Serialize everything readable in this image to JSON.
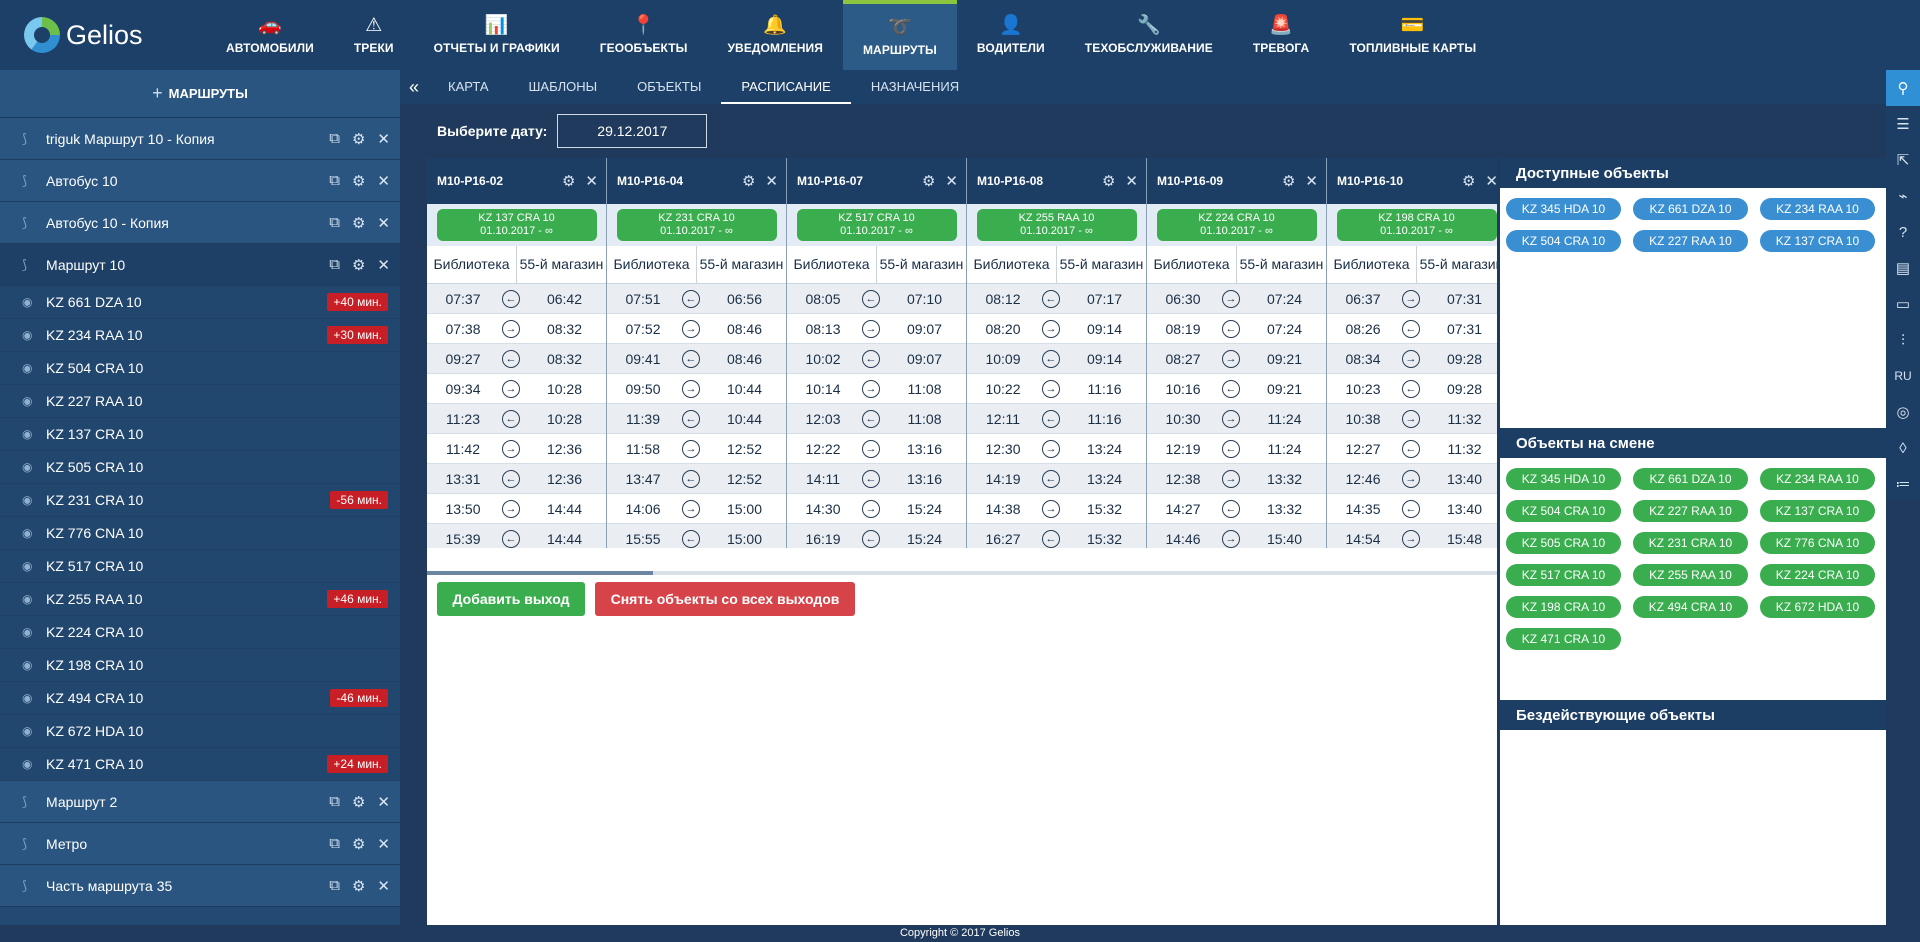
{
  "app": {
    "logo_text": "Gelios"
  },
  "nav": [
    {
      "label": "АВТОМОБИЛИ",
      "icon": "🚗",
      "active": false
    },
    {
      "label": "ТРЕКИ",
      "icon": "⚠",
      "active": false
    },
    {
      "label": "ОТЧЕТЫ И ГРАФИКИ",
      "icon": "📊",
      "active": false
    },
    {
      "label": "ГЕООБЪЕКТЫ",
      "icon": "📍",
      "active": false
    },
    {
      "label": "УВЕДОМЛЕНИЯ",
      "icon": "🔔",
      "active": false
    },
    {
      "label": "МАРШРУТЫ",
      "icon": "➰",
      "active": true
    },
    {
      "label": "ВОДИТЕЛИ",
      "icon": "👤",
      "active": false
    },
    {
      "label": "ТЕХОБСЛУЖИВАНИЕ",
      "icon": "🔧",
      "active": false
    },
    {
      "label": "ТРЕВОГА",
      "icon": "🚨",
      "active": false
    },
    {
      "label": "ТОПЛИВНЫЕ КАРТЫ",
      "icon": "💳",
      "active": false
    }
  ],
  "sidebar": {
    "add_label": "МАРШРУТЫ",
    "routes_before": [
      {
        "name": "triguk Маршрут 10 - Копия"
      },
      {
        "name": "Автобус 10"
      },
      {
        "name": "Автобус 10 - Копия"
      }
    ],
    "active_route": {
      "name": "Маршрут 10"
    },
    "objects": [
      {
        "name": "KZ 661 DZA 10",
        "deviation": "+40 мин."
      },
      {
        "name": "KZ 234 RAA 10",
        "deviation": "+30 мин."
      },
      {
        "name": "KZ 504 CRA 10",
        "deviation": ""
      },
      {
        "name": "KZ 227 RAA 10",
        "deviation": ""
      },
      {
        "name": "KZ 137 CRA 10",
        "deviation": ""
      },
      {
        "name": "KZ 505 CRA 10",
        "deviation": ""
      },
      {
        "name": "KZ 231 CRA 10",
        "deviation": "-56 мин."
      },
      {
        "name": "KZ 776 CNA 10",
        "deviation": ""
      },
      {
        "name": "KZ 517 CRA 10",
        "deviation": ""
      },
      {
        "name": "KZ 255 RAA 10",
        "deviation": "+46 мин."
      },
      {
        "name": "KZ 224 CRA 10",
        "deviation": ""
      },
      {
        "name": "KZ 198 CRA 10",
        "deviation": ""
      },
      {
        "name": "KZ 494 CRA 10",
        "deviation": "-46 мин."
      },
      {
        "name": "KZ 672 HDA 10",
        "deviation": ""
      },
      {
        "name": "KZ 471 CRA 10",
        "deviation": "+24 мин."
      }
    ],
    "routes_after": [
      {
        "name": "Маршрут 2"
      },
      {
        "name": "Метро"
      },
      {
        "name": "Часть маршрута 35"
      }
    ]
  },
  "subtabs": [
    {
      "label": "КАРТА",
      "active": false
    },
    {
      "label": "ШАБЛОНЫ",
      "active": false
    },
    {
      "label": "ОБЪЕКТЫ",
      "active": false
    },
    {
      "label": "РАСПИСАНИЕ",
      "active": true
    },
    {
      "label": "НАЗНАЧЕНИЯ",
      "active": false
    }
  ],
  "date": {
    "label": "Выберите дату:",
    "value": "29.12.2017"
  },
  "schedule": {
    "stop_a": "Библиотека",
    "stop_b": "55-й магазин",
    "columns": [
      {
        "title": "М10-Р16-02",
        "object": "KZ 137 CRA 10",
        "period": "01.10.2017 - ∞",
        "rows": [
          [
            "07:37",
            "←",
            "06:42"
          ],
          [
            "07:38",
            "→",
            "08:32"
          ],
          [
            "09:27",
            "←",
            "08:32"
          ],
          [
            "09:34",
            "→",
            "10:28"
          ],
          [
            "11:23",
            "←",
            "10:28"
          ],
          [
            "11:42",
            "→",
            "12:36"
          ],
          [
            "13:31",
            "←",
            "12:36"
          ],
          [
            "13:50",
            "→",
            "14:44"
          ],
          [
            "15:39",
            "←",
            "14:44"
          ]
        ]
      },
      {
        "title": "М10-Р16-04",
        "object": "KZ 231 CRA 10",
        "period": "01.10.2017 - ∞",
        "rows": [
          [
            "07:51",
            "←",
            "06:56"
          ],
          [
            "07:52",
            "→",
            "08:46"
          ],
          [
            "09:41",
            "←",
            "08:46"
          ],
          [
            "09:50",
            "→",
            "10:44"
          ],
          [
            "11:39",
            "←",
            "10:44"
          ],
          [
            "11:58",
            "→",
            "12:52"
          ],
          [
            "13:47",
            "←",
            "12:52"
          ],
          [
            "14:06",
            "→",
            "15:00"
          ],
          [
            "15:55",
            "←",
            "15:00"
          ]
        ]
      },
      {
        "title": "М10-Р16-07",
        "object": "KZ 517 CRA 10",
        "period": "01.10.2017 - ∞",
        "rows": [
          [
            "08:05",
            "←",
            "07:10"
          ],
          [
            "08:13",
            "→",
            "09:07"
          ],
          [
            "10:02",
            "←",
            "09:07"
          ],
          [
            "10:14",
            "→",
            "11:08"
          ],
          [
            "12:03",
            "←",
            "11:08"
          ],
          [
            "12:22",
            "→",
            "13:16"
          ],
          [
            "14:11",
            "←",
            "13:16"
          ],
          [
            "14:30",
            "→",
            "15:24"
          ],
          [
            "16:19",
            "←",
            "15:24"
          ]
        ]
      },
      {
        "title": "М10-Р16-08",
        "object": "KZ 255 RAA 10",
        "period": "01.10.2017 - ∞",
        "rows": [
          [
            "08:12",
            "←",
            "07:17"
          ],
          [
            "08:20",
            "→",
            "09:14"
          ],
          [
            "10:09",
            "←",
            "09:14"
          ],
          [
            "10:22",
            "→",
            "11:16"
          ],
          [
            "12:11",
            "←",
            "11:16"
          ],
          [
            "12:30",
            "→",
            "13:24"
          ],
          [
            "14:19",
            "←",
            "13:24"
          ],
          [
            "14:38",
            "→",
            "15:32"
          ],
          [
            "16:27",
            "←",
            "15:32"
          ]
        ]
      },
      {
        "title": "М10-Р16-09",
        "object": "KZ 224 CRA 10",
        "period": "01.10.2017 - ∞",
        "rows": [
          [
            "06:30",
            "→",
            "07:24"
          ],
          [
            "08:19",
            "←",
            "07:24"
          ],
          [
            "08:27",
            "→",
            "09:21"
          ],
          [
            "10:16",
            "←",
            "09:21"
          ],
          [
            "10:30",
            "→",
            "11:24"
          ],
          [
            "12:19",
            "←",
            "11:24"
          ],
          [
            "12:38",
            "→",
            "13:32"
          ],
          [
            "14:27",
            "←",
            "13:32"
          ],
          [
            "14:46",
            "→",
            "15:40"
          ]
        ]
      },
      {
        "title": "М10-Р16-10",
        "object": "KZ 198 CRA 10",
        "period": "01.10.2017 - ∞",
        "rows": [
          [
            "06:37",
            "→",
            "07:31"
          ],
          [
            "08:26",
            "←",
            "07:31"
          ],
          [
            "08:34",
            "→",
            "09:28"
          ],
          [
            "10:23",
            "←",
            "09:28"
          ],
          [
            "10:38",
            "→",
            "11:32"
          ],
          [
            "12:27",
            "←",
            "11:32"
          ],
          [
            "12:46",
            "→",
            "13:40"
          ],
          [
            "14:35",
            "←",
            "13:40"
          ],
          [
            "14:54",
            "→",
            "15:48"
          ]
        ]
      }
    ]
  },
  "buttons": {
    "add_exit": "Добавить выход",
    "remove_all": "Снять объекты со всех выходов"
  },
  "right_panel": {
    "available_title": "Доступные объекты",
    "available": [
      "KZ 345 HDA 10",
      "KZ 661 DZA 10",
      "KZ 234 RAA 10",
      "KZ 504 CRA 10",
      "KZ 227 RAA 10",
      "KZ 137 CRA 10"
    ],
    "onshift_title": "Объекты на смене",
    "onshift": [
      "KZ 345 HDA 10",
      "KZ 661 DZA 10",
      "KZ 234 RAA 10",
      "KZ 504 CRA 10",
      "KZ 227 RAA 10",
      "KZ 137 CRA 10",
      "KZ 505 CRA 10",
      "KZ 231 CRA 10",
      "KZ 776 CNA 10",
      "KZ 517 CRA 10",
      "KZ 255 RAA 10",
      "KZ 224 CRA 10",
      "KZ 198 CRA 10",
      "KZ 494 CRA 10",
      "KZ 672 HDA 10",
      "KZ 471 CRA 10"
    ],
    "idle_title": "Бездействующие объекты"
  },
  "right_strip": [
    {
      "icon": "search-icon",
      "glyph": "⚲",
      "active": true
    },
    {
      "icon": "menu-icon",
      "glyph": "☰",
      "active": false
    },
    {
      "icon": "external-link-icon",
      "glyph": "⇱",
      "active": false
    },
    {
      "icon": "satellite-icon",
      "glyph": "⌁",
      "active": false
    },
    {
      "icon": "help-icon",
      "glyph": "?",
      "active": false
    },
    {
      "icon": "document-icon",
      "glyph": "▤",
      "active": false
    },
    {
      "icon": "chat-icon",
      "glyph": "▭",
      "active": false
    },
    {
      "icon": "sliders-icon",
      "glyph": "⫶",
      "active": false
    },
    {
      "icon": "language-icon",
      "glyph": "RU",
      "active": false
    },
    {
      "icon": "bulb-icon",
      "glyph": "◎",
      "active": false
    },
    {
      "icon": "drop-icon",
      "glyph": "◊",
      "active": false
    },
    {
      "icon": "list-icon",
      "glyph": "≔",
      "active": false
    }
  ],
  "footer": "Copyright © 2017 Gelios"
}
